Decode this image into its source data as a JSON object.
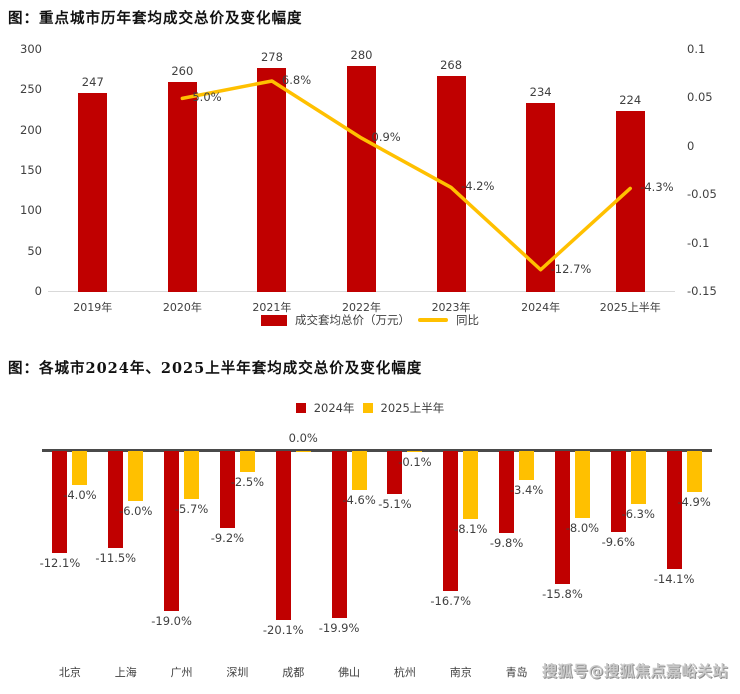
{
  "page": {
    "watermark": "搜狐号@搜狐焦点嘉峪关站"
  },
  "colors": {
    "bar_red": "#C00000",
    "line_yellow": "#FFC000",
    "axis_text": "#404040",
    "axis_line_light": "#D9D9D9",
    "axis_line_dark": "#4A4A4A"
  },
  "chart_data": [
    {
      "type": "bar+line",
      "title": "图：重点城市历年套均成交总价及变化幅度",
      "categories": [
        "2019年",
        "2020年",
        "2021年",
        "2022年",
        "2023年",
        "2024年",
        "2025上半年"
      ],
      "bar_series": {
        "name": "成交套均总价（万元）",
        "values": [
          247,
          260,
          278,
          280,
          268,
          234,
          224
        ],
        "labels": [
          "247",
          "260",
          "278",
          "280",
          "268",
          "234",
          "224"
        ]
      },
      "line_series": {
        "name": "同比",
        "values": [
          null,
          0.05,
          0.068,
          0.009,
          -0.042,
          -0.127,
          -0.043
        ],
        "labels": [
          "",
          "5.0%",
          "6.8%",
          "0.9%",
          "-4.2%",
          "-12.7%",
          "-4.3%"
        ]
      },
      "left_axis": {
        "min": 0,
        "max": 300,
        "tick_values": [
          0,
          50,
          100,
          150,
          200,
          250,
          300
        ],
        "tick_labels": [
          "0",
          "50",
          "100",
          "150",
          "200",
          "250",
          "300"
        ]
      },
      "right_axis": {
        "min": -0.15,
        "max": 0.1,
        "tick_values": [
          0.1,
          0.05,
          0,
          -0.05,
          -0.1,
          -0.15
        ],
        "tick_labels": [
          "0.1",
          "0.05",
          "0",
          "-0.05",
          "-0.1",
          "-0.15"
        ]
      },
      "legend": [
        {
          "label": "成交套均总价（万元）",
          "swatch": "bar"
        },
        {
          "label": "同比",
          "swatch": "line"
        }
      ],
      "grid": "off",
      "legend_position": "bottom-center"
    },
    {
      "type": "bar",
      "title": "图：各城市2024年、2025上半年套均成交总价及变化幅度",
      "categories": [
        "北京",
        "上海",
        "广州",
        "深圳",
        "成都",
        "佛山",
        "杭州",
        "南京",
        "青岛",
        "",
        "",
        ""
      ],
      "series": [
        {
          "name": "2024年",
          "color": "#C00000",
          "values": [
            -12.1,
            -11.5,
            -19.0,
            -9.2,
            -20.1,
            -19.9,
            -5.1,
            -16.7,
            -9.8,
            -15.8,
            -9.6,
            -14.1
          ],
          "labels": [
            "-12.1%",
            "-11.5%",
            "-19.0%",
            "-9.2%",
            "-20.1%",
            "-19.9%",
            "-5.1%",
            "-16.7%",
            "-9.8%",
            "-15.8%",
            "-9.6%",
            "-14.1%"
          ]
        },
        {
          "name": "2025上半年",
          "color": "#FFC000",
          "values": [
            -4.0,
            -6.0,
            -5.7,
            -2.5,
            0.0,
            -4.6,
            -0.1,
            -8.1,
            -3.4,
            -8.0,
            -6.3,
            -4.9
          ],
          "labels": [
            "-4.0%",
            "-6.0%",
            "-5.7%",
            "-2.5%",
            "0.0%",
            "-4.6%",
            "-0.1%",
            "-8.1%",
            "-3.4%",
            "-8.0%",
            "-6.3%",
            "-4.9%"
          ]
        }
      ],
      "legend": [
        {
          "label": "2024年",
          "swatch": "square"
        },
        {
          "label": "2025上半年",
          "swatch": "square"
        }
      ],
      "grid": "off",
      "legend_position": "top-center",
      "ylim_percent": [
        -22,
        2
      ]
    }
  ]
}
